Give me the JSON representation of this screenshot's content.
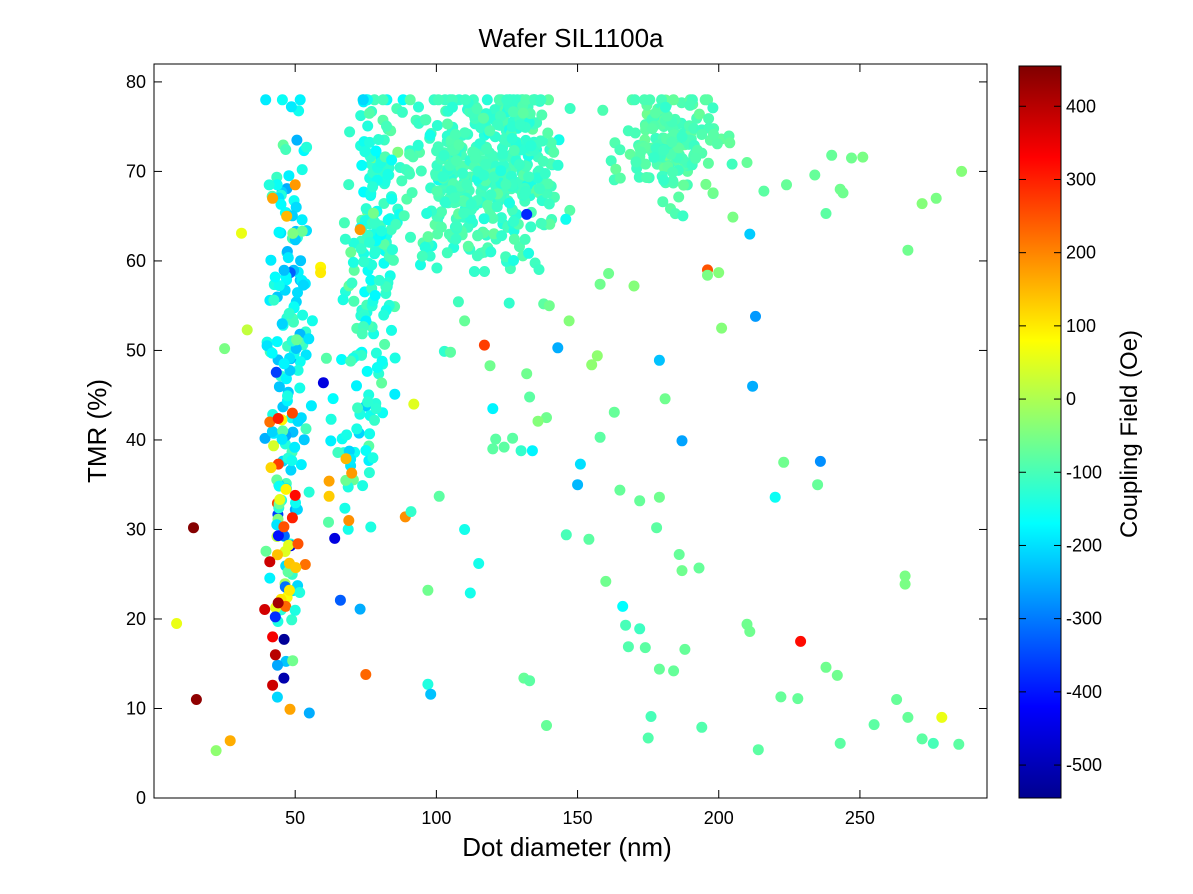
{
  "chart_data": {
    "type": "scatter",
    "title": "Wafer SIL1100a",
    "xlabel": "Dot diameter (nm)",
    "ylabel": "TMR (%)",
    "xlim": [
      0,
      295
    ],
    "ylim": [
      0,
      82
    ],
    "x_ticks": [
      50,
      100,
      150,
      200,
      250
    ],
    "y_ticks": [
      0,
      10,
      20,
      30,
      40,
      50,
      60,
      70,
      80
    ],
    "grid": false,
    "colorbar": {
      "label": "Coupling Field (Oe)",
      "range": [
        -545,
        455
      ],
      "ticks": [
        400,
        300,
        200,
        100,
        0,
        -100,
        -200,
        -300,
        -400,
        -500
      ],
      "colormap": "jet"
    },
    "clusters": [
      {
        "cx": 48,
        "cy": 52,
        "sx": 4,
        "sy": 14,
        "n": 140,
        "c": -170,
        "sc": 45
      },
      {
        "cx": 78,
        "cy": 63,
        "sx": 5,
        "sy": 9,
        "n": 170,
        "c": -130,
        "sc": 30
      },
      {
        "cx": 108,
        "cy": 70,
        "sx": 9,
        "sy": 5,
        "n": 260,
        "c": -110,
        "sc": 15
      },
      {
        "cx": 129,
        "cy": 71,
        "sx": 7,
        "sy": 5,
        "n": 220,
        "c": -110,
        "sc": 15
      },
      {
        "cx": 183,
        "cy": 73,
        "sx": 8,
        "sy": 3,
        "n": 170,
        "c": -95,
        "sc": 15
      },
      {
        "cx": 72,
        "cy": 40,
        "sx": 4,
        "sy": 6,
        "n": 40,
        "c": -150,
        "sc": 40
      },
      {
        "cx": 45,
        "cy": 28,
        "sx": 3,
        "sy": 7,
        "n": 50,
        "c": -150,
        "sc": 200
      }
    ],
    "points": [
      [
        14,
        30.2,
        450
      ],
      [
        15,
        11,
        440
      ],
      [
        8,
        19.5,
        60
      ],
      [
        22,
        5.3,
        -30
      ],
      [
        27,
        6.4,
        160
      ],
      [
        31,
        63.1,
        60
      ],
      [
        33,
        52.3,
        20
      ],
      [
        25,
        50.2,
        -50
      ],
      [
        42,
        12.6,
        380
      ],
      [
        43,
        16,
        400
      ],
      [
        46,
        13.4,
        -500
      ],
      [
        42,
        18,
        340
      ],
      [
        44,
        21.8,
        420
      ],
      [
        41,
        26.4,
        380
      ],
      [
        41,
        42,
        220
      ],
      [
        44,
        42.4,
        300
      ],
      [
        49,
        43,
        260
      ],
      [
        49,
        31.3,
        300
      ],
      [
        51,
        28.4,
        250
      ],
      [
        46,
        30.3,
        250
      ],
      [
        50,
        33.8,
        320
      ],
      [
        48,
        23.2,
        100
      ],
      [
        60,
        46.4,
        -450
      ],
      [
        64,
        29,
        -450
      ],
      [
        66,
        22.1,
        -330
      ],
      [
        73,
        21.1,
        -250
      ],
      [
        55,
        9.5,
        -250
      ],
      [
        75,
        13.8,
        230
      ],
      [
        70,
        36.3,
        180
      ],
      [
        68,
        37.9,
        150
      ],
      [
        62,
        35.4,
        170
      ],
      [
        62,
        33.7,
        130
      ],
      [
        69,
        31,
        190
      ],
      [
        73,
        63.5,
        180
      ],
      [
        59,
        59.3,
        90
      ],
      [
        59,
        58.7,
        100
      ],
      [
        89,
        31.4,
        190
      ],
      [
        92,
        44,
        50
      ],
      [
        117,
        50.6,
        270
      ],
      [
        132,
        65.2,
        -380
      ],
      [
        143,
        50.3,
        -250
      ],
      [
        151,
        37.3,
        -200
      ],
      [
        150,
        35,
        -240
      ],
      [
        179,
        48.9,
        -230
      ],
      [
        187,
        39.9,
        -260
      ],
      [
        212,
        46,
        -250
      ],
      [
        211,
        63,
        -220
      ],
      [
        213,
        53.8,
        -270
      ],
      [
        220,
        33.6,
        -160
      ],
      [
        236,
        37.6,
        -280
      ],
      [
        196,
        59,
        250
      ],
      [
        229,
        17.5,
        320
      ],
      [
        279,
        9,
        60
      ],
      [
        115,
        26.2,
        -150
      ],
      [
        112,
        22.9,
        -150
      ],
      [
        97,
        12.7,
        -140
      ],
      [
        98,
        11.6,
        -230
      ],
      [
        97,
        23.2,
        -60
      ],
      [
        120,
        43.5,
        -180
      ],
      [
        130,
        38.8,
        -120
      ],
      [
        134,
        38.8,
        -180
      ],
      [
        110,
        30,
        -150
      ],
      [
        101,
        33.7,
        -80
      ],
      [
        91,
        32,
        -120
      ],
      [
        139,
        8.1,
        -70
      ],
      [
        146,
        29.4,
        -100
      ],
      [
        154,
        28.9,
        -80
      ],
      [
        158,
        40.3,
        -80
      ],
      [
        160,
        24.2,
        -60
      ],
      [
        163,
        43.1,
        -70
      ],
      [
        165,
        34.4,
        -70
      ],
      [
        166,
        21.4,
        -170
      ],
      [
        167,
        19.3,
        -100
      ],
      [
        168,
        16.9,
        -90
      ],
      [
        172,
        18.9,
        -110
      ],
      [
        172,
        33.2,
        -70
      ],
      [
        174,
        16.8,
        -80
      ],
      [
        175,
        6.7,
        -90
      ],
      [
        176,
        9.1,
        -100
      ],
      [
        178,
        30.2,
        -80
      ],
      [
        179,
        14.4,
        -70
      ],
      [
        179,
        33.6,
        -60
      ],
      [
        181,
        44.6,
        -60
      ],
      [
        184,
        14.2,
        -70
      ],
      [
        186,
        27.2,
        -70
      ],
      [
        187,
        25.4,
        -60
      ],
      [
        188,
        16.6,
        -70
      ],
      [
        193,
        25.7,
        -70
      ],
      [
        194,
        7.9,
        -90
      ],
      [
        196,
        58.4,
        -50
      ],
      [
        200,
        58.7,
        -40
      ],
      [
        201,
        52.5,
        -40
      ],
      [
        210,
        19.4,
        -60
      ],
      [
        211,
        18.6,
        -60
      ],
      [
        214,
        5.4,
        -80
      ],
      [
        222,
        11.3,
        -70
      ],
      [
        223,
        37.5,
        -60
      ],
      [
        228,
        11.1,
        -70
      ],
      [
        235,
        35,
        -70
      ],
      [
        238,
        14.6,
        -60
      ],
      [
        242,
        13.7,
        -60
      ],
      [
        243,
        6.1,
        -80
      ],
      [
        255,
        8.2,
        -80
      ],
      [
        263,
        11,
        -70
      ],
      [
        266,
        24.8,
        -50
      ],
      [
        266,
        23.9,
        -50
      ],
      [
        267,
        9,
        -70
      ],
      [
        272,
        6.6,
        -80
      ],
      [
        276,
        6.1,
        -100
      ],
      [
        285,
        6,
        -80
      ],
      [
        267,
        61.2,
        -60
      ],
      [
        272,
        66.4,
        -40
      ],
      [
        277,
        67,
        -50
      ],
      [
        286,
        70,
        -40
      ],
      [
        247,
        71.5,
        -60
      ],
      [
        251,
        71.6,
        -50
      ],
      [
        240,
        71.8,
        -70
      ],
      [
        238,
        65.3,
        -80
      ],
      [
        243,
        68,
        -60
      ],
      [
        244,
        67.6,
        -60
      ],
      [
        234,
        69.6,
        -70
      ],
      [
        224,
        68.5,
        -70
      ],
      [
        216,
        67.8,
        -80
      ],
      [
        210,
        71,
        -70
      ],
      [
        205,
        64.9,
        -50
      ],
      [
        198,
        67.6,
        -60
      ],
      [
        139,
        42.5,
        -60
      ],
      [
        136,
        42.1,
        -40
      ],
      [
        133,
        44.8,
        -80
      ],
      [
        132,
        47.4,
        -60
      ],
      [
        138,
        55.2,
        -80
      ],
      [
        140,
        55,
        -60
      ],
      [
        147,
        53.3,
        -40
      ],
      [
        155,
        48.4,
        -30
      ],
      [
        157,
        49.4,
        -30
      ],
      [
        161,
        58.6,
        -60
      ],
      [
        170,
        57.2,
        -40
      ],
      [
        158,
        57.4,
        -60
      ],
      [
        124,
        39.2,
        -80
      ],
      [
        127,
        40.2,
        -80
      ],
      [
        121,
        40.1,
        -80
      ],
      [
        120,
        39,
        -80
      ],
      [
        119,
        48.3,
        -60
      ],
      [
        110,
        53.3,
        -70
      ],
      [
        105,
        49.8,
        -80
      ],
      [
        131,
        13.4,
        -70
      ],
      [
        133,
        13.1,
        -80
      ],
      [
        42,
        67,
        170
      ],
      [
        50,
        68.5,
        180
      ],
      [
        47,
        65,
        150
      ]
    ]
  }
}
